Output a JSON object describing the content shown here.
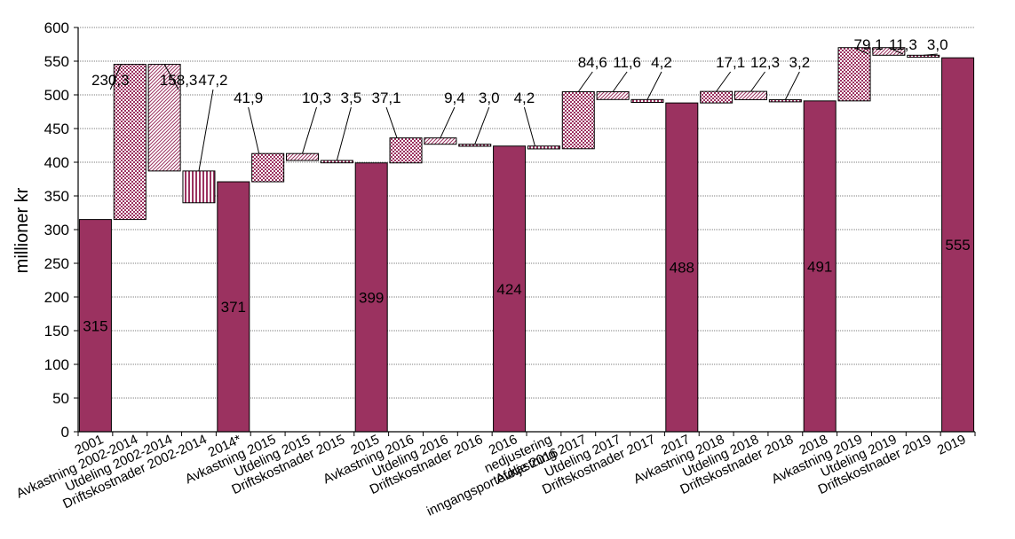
{
  "chart_data": {
    "type": "bar",
    "subtype": "waterfall",
    "ylabel": "millioner kr",
    "ylim": [
      0,
      600
    ],
    "yticks": [
      0,
      50,
      100,
      150,
      200,
      250,
      300,
      350,
      400,
      450,
      500,
      550,
      600
    ],
    "grid": true,
    "legend": "none",
    "categories": [
      "2001",
      "Avkastning 2002-2014",
      "Utdeling 2002-2014",
      "Driftskostnader 2002-2014",
      "2014*",
      "Avkastning 2015",
      "Utdeling 2015",
      "Driftskostnader 2015",
      "2015",
      "Avkastning 2016",
      "Utdeling 2016",
      "Driftskostnader 2016",
      "2016",
      "nedjustering inngangsportefølje 2016",
      "Avkastning 2017",
      "Utdeling 2017",
      "Driftskostnader 2017",
      "2017",
      "Avkastning 2018",
      "Utdeling 2018",
      "Driftskostnader 2018",
      "2018",
      "Avkastning 2019",
      "Utdeling 2019",
      "Driftskostnader 2019",
      "2019"
    ],
    "category_label_lines": [
      [
        "2001"
      ],
      [
        "Avkastning 2002-2014"
      ],
      [
        "Utdeling 2002-2014"
      ],
      [
        "Driftskostnader 2002-2014"
      ],
      [
        "2014*"
      ],
      [
        "Avkastning 2015"
      ],
      [
        "Utdeling 2015"
      ],
      [
        "Driftskostnader 2015"
      ],
      [
        "2015"
      ],
      [
        "Avkastning 2016"
      ],
      [
        "Utdeling 2016"
      ],
      [
        "Driftskostnader 2016"
      ],
      [
        "2016"
      ],
      [
        "nedjustering",
        "inngangsportefølje 2016"
      ],
      [
        "Avkastning 2017"
      ],
      [
        "Utdeling 2017"
      ],
      [
        "Driftskostnader 2017"
      ],
      [
        "2017"
      ],
      [
        "Avkastning 2018"
      ],
      [
        "Utdeling 2018"
      ],
      [
        "Driftskostnader 2018"
      ],
      [
        "2018"
      ],
      [
        "Avkastning 2019"
      ],
      [
        "Utdeling 2019"
      ],
      [
        "Driftskostnader 2019"
      ],
      [
        "2019"
      ]
    ],
    "bars": [
      {
        "kind": "total",
        "base": 0,
        "top": 315,
        "label": "315"
      },
      {
        "kind": "return",
        "base": 315,
        "top": 545.3,
        "label": "230,3"
      },
      {
        "kind": "distribution",
        "base": 387,
        "top": 545.3,
        "label": "158,3"
      },
      {
        "kind": "cost",
        "base": 339.8,
        "top": 387,
        "label": "47,2"
      },
      {
        "kind": "total",
        "base": 0,
        "top": 371,
        "label": "371"
      },
      {
        "kind": "return",
        "base": 371,
        "top": 412.9,
        "label": "41,9"
      },
      {
        "kind": "distribution",
        "base": 402.6,
        "top": 412.9,
        "label": "10,3"
      },
      {
        "kind": "cost",
        "base": 399.1,
        "top": 402.6,
        "label": "3,5"
      },
      {
        "kind": "total",
        "base": 0,
        "top": 399,
        "label": "399"
      },
      {
        "kind": "return",
        "base": 399,
        "top": 436.1,
        "label": "37,1"
      },
      {
        "kind": "distribution",
        "base": 426.7,
        "top": 436.1,
        "label": "9,4"
      },
      {
        "kind": "cost",
        "base": 423.7,
        "top": 426.7,
        "label": "3,0"
      },
      {
        "kind": "total",
        "base": 0,
        "top": 424,
        "label": "424"
      },
      {
        "kind": "cost",
        "base": 419.8,
        "top": 424,
        "label": "4,2"
      },
      {
        "kind": "return",
        "base": 420,
        "top": 504.6,
        "label": "84,6"
      },
      {
        "kind": "distribution",
        "base": 493,
        "top": 504.6,
        "label": "11,6"
      },
      {
        "kind": "cost",
        "base": 488.8,
        "top": 493,
        "label": "4,2"
      },
      {
        "kind": "total",
        "base": 0,
        "top": 488,
        "label": "488"
      },
      {
        "kind": "return",
        "base": 488,
        "top": 505.1,
        "label": "17,1"
      },
      {
        "kind": "distribution",
        "base": 492.8,
        "top": 505.1,
        "label": "12,3"
      },
      {
        "kind": "cost",
        "base": 489.6,
        "top": 492.8,
        "label": "3,2"
      },
      {
        "kind": "total",
        "base": 0,
        "top": 491,
        "label": "491"
      },
      {
        "kind": "return",
        "base": 491,
        "top": 570.1,
        "label": "79,1"
      },
      {
        "kind": "distribution",
        "base": 558.8,
        "top": 570.1,
        "label": "11,3"
      },
      {
        "kind": "cost",
        "base": 555.8,
        "top": 558.8,
        "label": "3,0"
      },
      {
        "kind": "total",
        "base": 0,
        "top": 555,
        "label": "555"
      }
    ],
    "label_height_rank": [
      0,
      2,
      2,
      2,
      0,
      1,
      1,
      1,
      0,
      1,
      1,
      1,
      0,
      1,
      3,
      3,
      3,
      0,
      3,
      3,
      3,
      0,
      4,
      4,
      4,
      0
    ],
    "colors": {
      "total": "#9b3260",
      "pattern": "#9b3260",
      "grid": "#000000",
      "axis": "#000000"
    }
  }
}
